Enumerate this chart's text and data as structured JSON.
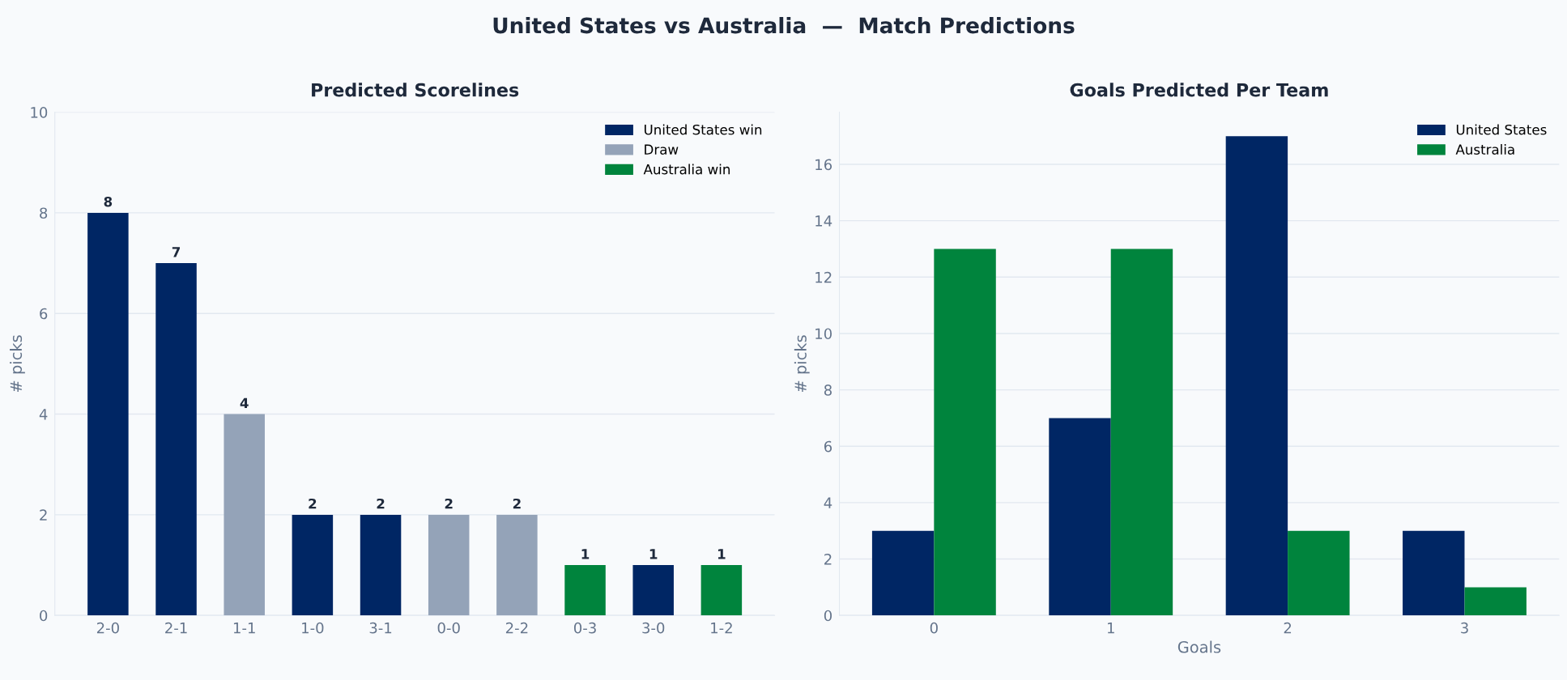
{
  "chart_data": [
    {
      "type": "bar",
      "title": "Predicted Scorelines",
      "annotations": [
        "United States vs Australia  —  Match Predictions"
      ],
      "ylabel": "# picks",
      "categories": [
        "2-0",
        "2-1",
        "1-1",
        "1-0",
        "3-1",
        "0-0",
        "2-2",
        "0-3",
        "3-0",
        "1-2"
      ],
      "stacked": true,
      "series": [
        {
          "name": "United States win",
          "color": "#002664",
          "values": [
            8,
            7,
            null,
            2,
            2,
            null,
            null,
            null,
            1,
            null
          ]
        },
        {
          "name": "Draw",
          "color": "#94a3b8",
          "values": [
            null,
            null,
            4,
            null,
            null,
            2,
            2,
            null,
            null,
            null
          ]
        },
        {
          "name": "Australia win",
          "color": "#00843d",
          "values": [
            null,
            null,
            null,
            null,
            null,
            null,
            null,
            1,
            null,
            1
          ]
        }
      ],
      "ylim": [
        0,
        10
      ],
      "yticks": [
        0,
        2,
        4,
        6,
        8,
        10
      ],
      "grid": "y",
      "legend": "top right",
      "data_labels": true
    },
    {
      "type": "bar",
      "title": "Goals Predicted Per Team",
      "xlabel": "Goals",
      "ylabel": "# picks",
      "categories": [
        "0",
        "1",
        "2",
        "3"
      ],
      "series": [
        {
          "name": "United States",
          "color": "#002664",
          "values": [
            3,
            7,
            17,
            3
          ]
        },
        {
          "name": "Australia",
          "color": "#00843d",
          "values": [
            13,
            13,
            3,
            1
          ]
        }
      ],
      "ylim": [
        0,
        17.85
      ],
      "yticks": [
        0,
        2,
        4,
        6,
        8,
        10,
        12,
        14,
        16
      ],
      "grid": "y",
      "legend": "top right"
    }
  ]
}
